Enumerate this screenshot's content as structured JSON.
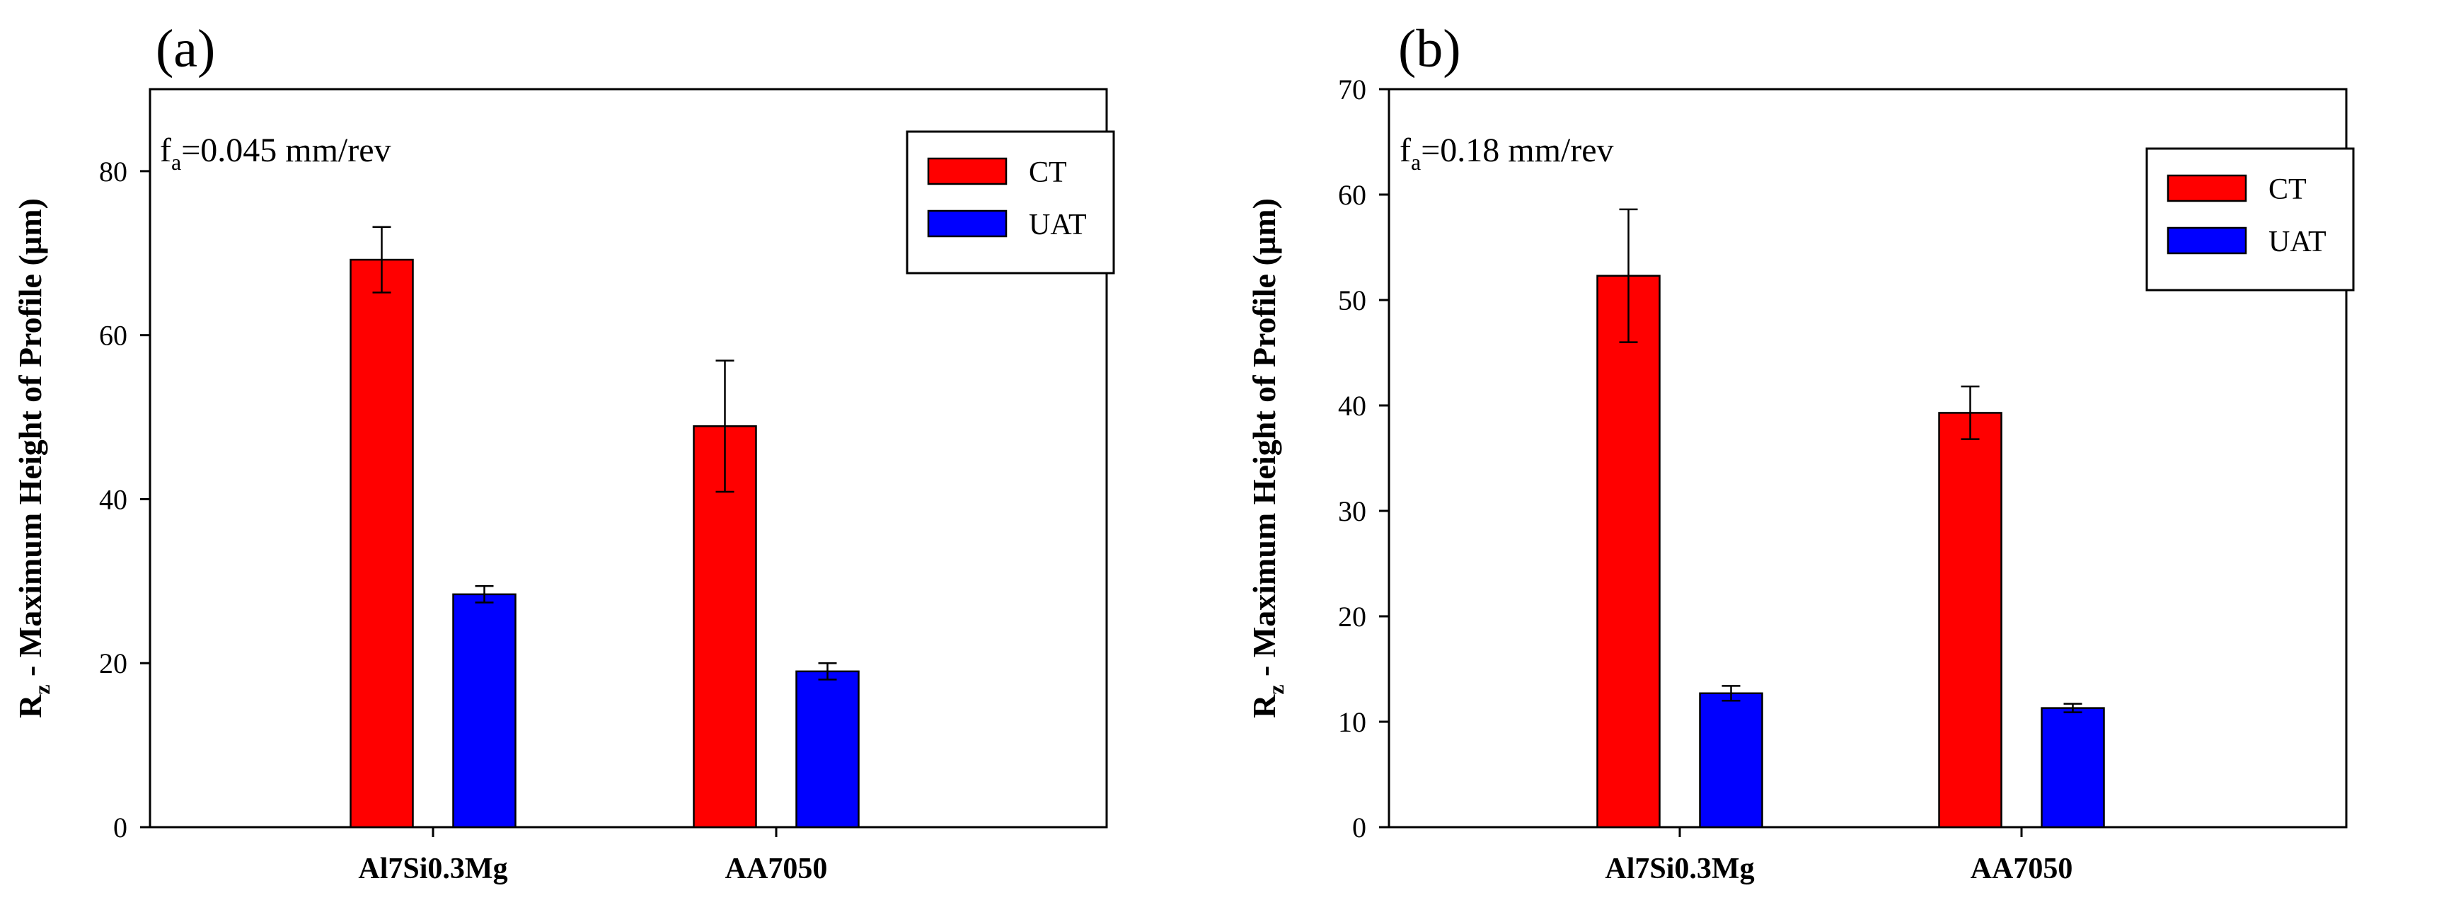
{
  "chart_data": [
    {
      "panel_label": "(a)",
      "type": "bar",
      "annotation": {
        "main": "f",
        "sub": "a",
        "rest": "=0.045 mm/rev"
      },
      "ylabel": {
        "main": "R",
        "sub": "z",
        "rest": " - Maximum Height of Profile (µm)"
      },
      "categories": [
        "Al7Si0.3Mg",
        "AA7050"
      ],
      "ylim": [
        0,
        90
      ],
      "yticks": [
        0,
        20,
        40,
        60,
        80
      ],
      "series": [
        {
          "name": "CT",
          "color": "#ff0000",
          "values": [
            69.2,
            48.9
          ],
          "errors": [
            4.0,
            8.0
          ]
        },
        {
          "name": "UAT",
          "color": "#0000ff",
          "values": [
            28.4,
            19.0
          ],
          "errors": [
            1.0,
            1.0
          ]
        }
      ],
      "legend_position": "top-right",
      "grid": false
    },
    {
      "panel_label": "(b)",
      "type": "bar",
      "annotation": {
        "main": "f",
        "sub": "a",
        "rest": "=0.18 mm/rev"
      },
      "ylabel": {
        "main": "R",
        "sub": "z",
        "rest": " - Maximum Height of Profile (µm)"
      },
      "categories": [
        "Al7Si0.3Mg",
        "AA7050"
      ],
      "ylim": [
        0,
        70
      ],
      "yticks": [
        0,
        10,
        20,
        30,
        40,
        50,
        60,
        70
      ],
      "series": [
        {
          "name": "CT",
          "color": "#ff0000",
          "values": [
            52.3,
            39.3
          ],
          "errors": [
            6.3,
            2.5
          ]
        },
        {
          "name": "UAT",
          "color": "#0000ff",
          "values": [
            12.7,
            11.3
          ],
          "errors": [
            0.7,
            0.4
          ]
        }
      ],
      "legend_position": "top-right",
      "grid": false
    }
  ]
}
